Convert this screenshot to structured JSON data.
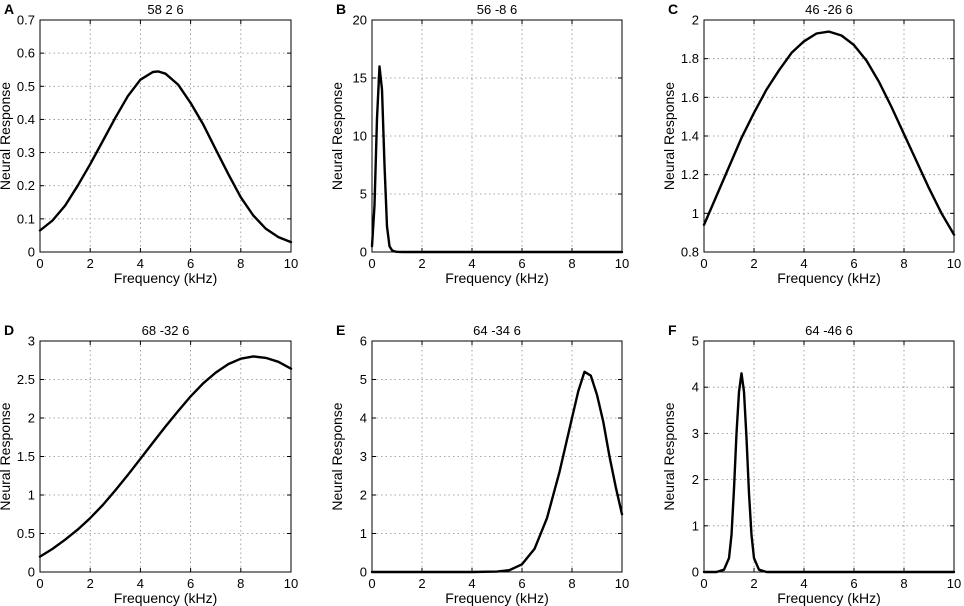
{
  "chart_data": [
    {
      "type": "line",
      "panel": "A",
      "title": "58 2 6",
      "xlabel": "Frequency (kHz)",
      "ylabel": "Neural Response",
      "xlim": [
        0,
        10
      ],
      "ylim": [
        0,
        0.7
      ],
      "grid": true,
      "xticks": [
        "0",
        "2",
        "4",
        "6",
        "8",
        "10"
      ],
      "yticks": [
        "0",
        "0.1",
        "0.2",
        "0.3",
        "0.4",
        "0.5",
        "0.6",
        "0.7"
      ],
      "x": [
        0,
        0.5,
        1,
        1.5,
        2,
        2.5,
        3,
        3.5,
        4,
        4.5,
        4.7,
        5,
        5.5,
        6,
        6.5,
        7,
        7.5,
        8,
        8.5,
        9,
        9.5,
        10
      ],
      "y": [
        0.065,
        0.095,
        0.14,
        0.2,
        0.265,
        0.335,
        0.405,
        0.47,
        0.52,
        0.543,
        0.545,
        0.538,
        0.505,
        0.45,
        0.385,
        0.31,
        0.235,
        0.165,
        0.11,
        0.07,
        0.045,
        0.03
      ],
      "series_name": "Neural Response"
    },
    {
      "type": "line",
      "panel": "B",
      "title": "56 -8 6",
      "xlabel": "Frequency (kHz)",
      "ylabel": "Neural Response",
      "xlim": [
        0,
        10
      ],
      "ylim": [
        0,
        20
      ],
      "grid": true,
      "xticks": [
        "0",
        "2",
        "4",
        "6",
        "8",
        "10"
      ],
      "yticks": [
        "0",
        "5",
        "10",
        "15",
        "20"
      ],
      "x": [
        0,
        0.1,
        0.2,
        0.3,
        0.4,
        0.5,
        0.6,
        0.7,
        0.8,
        0.9,
        1.0,
        1.2,
        2,
        4,
        6,
        8,
        10
      ],
      "y": [
        0.5,
        4,
        11.5,
        16,
        14,
        7.5,
        2.2,
        0.5,
        0.15,
        0.05,
        0.02,
        0,
        0,
        0,
        0,
        0,
        0
      ],
      "series_name": "Neural Response"
    },
    {
      "type": "line",
      "panel": "C",
      "title": "46 -26 6",
      "xlabel": "Frequency (kHz)",
      "ylabel": "Neural Response",
      "xlim": [
        0,
        10
      ],
      "ylim": [
        0.8,
        2
      ],
      "grid": true,
      "xticks": [
        "0",
        "2",
        "4",
        "6",
        "8",
        "10"
      ],
      "yticks": [
        "0.8",
        "1",
        "1.2",
        "1.4",
        "1.6",
        "1.8",
        "2"
      ],
      "x": [
        0,
        0.5,
        1,
        1.5,
        2,
        2.5,
        3,
        3.5,
        4,
        4.5,
        5,
        5.5,
        6,
        6.5,
        7,
        7.5,
        8,
        8.5,
        9,
        9.5,
        10
      ],
      "y": [
        0.94,
        1.09,
        1.24,
        1.39,
        1.52,
        1.64,
        1.74,
        1.83,
        1.89,
        1.93,
        1.94,
        1.92,
        1.87,
        1.79,
        1.68,
        1.55,
        1.41,
        1.27,
        1.13,
        1.0,
        0.89
      ],
      "series_name": "Neural Response"
    },
    {
      "type": "line",
      "panel": "D",
      "title": "68 -32 6",
      "xlabel": "Frequency (kHz)",
      "ylabel": "Neural Response",
      "xlim": [
        0,
        10
      ],
      "ylim": [
        0,
        3
      ],
      "grid": true,
      "xticks": [
        "0",
        "2",
        "4",
        "6",
        "8",
        "10"
      ],
      "yticks": [
        "0",
        "0.5",
        "1",
        "1.5",
        "2",
        "2.5",
        "3"
      ],
      "x": [
        0,
        0.5,
        1,
        1.5,
        2,
        2.5,
        3,
        3.5,
        4,
        4.5,
        5,
        5.5,
        6,
        6.5,
        7,
        7.5,
        8,
        8.5,
        9,
        9.5,
        10
      ],
      "y": [
        0.2,
        0.3,
        0.42,
        0.55,
        0.7,
        0.87,
        1.06,
        1.26,
        1.47,
        1.68,
        1.89,
        2.09,
        2.28,
        2.45,
        2.59,
        2.7,
        2.77,
        2.8,
        2.78,
        2.73,
        2.64
      ],
      "series_name": "Neural Response"
    },
    {
      "type": "line",
      "panel": "E",
      "title": "64 -34 6",
      "xlabel": "Frequency (kHz)",
      "ylabel": "Neural Response",
      "xlim": [
        0,
        10
      ],
      "ylim": [
        0,
        6
      ],
      "grid": true,
      "xticks": [
        "0",
        "2",
        "4",
        "6",
        "8",
        "10"
      ],
      "yticks": [
        "0",
        "1",
        "2",
        "3",
        "4",
        "5",
        "6"
      ],
      "x": [
        0,
        2,
        4,
        5,
        5.5,
        6,
        6.5,
        7,
        7.5,
        8,
        8.25,
        8.5,
        8.75,
        9,
        9.25,
        9.5,
        9.75,
        10
      ],
      "y": [
        0,
        0,
        0,
        0.01,
        0.05,
        0.2,
        0.6,
        1.4,
        2.6,
        4.0,
        4.7,
        5.2,
        5.1,
        4.6,
        3.9,
        3.0,
        2.2,
        1.5
      ],
      "series_name": "Neural Response"
    },
    {
      "type": "line",
      "panel": "F",
      "title": "64 -46 6",
      "xlabel": "Frequency (kHz)",
      "ylabel": "Neural Response",
      "xlim": [
        0,
        10
      ],
      "ylim": [
        0,
        5
      ],
      "grid": true,
      "xticks": [
        "0",
        "2",
        "4",
        "6",
        "8",
        "10"
      ],
      "yticks": [
        "0",
        "1",
        "2",
        "3",
        "4",
        "5"
      ],
      "x": [
        0,
        0.5,
        0.8,
        1.0,
        1.1,
        1.2,
        1.3,
        1.4,
        1.5,
        1.6,
        1.7,
        1.8,
        1.9,
        2.0,
        2.2,
        2.5,
        4,
        6,
        8,
        10
      ],
      "y": [
        0,
        0,
        0.05,
        0.3,
        0.8,
        1.8,
        3.0,
        3.9,
        4.3,
        3.9,
        2.9,
        1.7,
        0.8,
        0.3,
        0.05,
        0,
        0,
        0,
        0,
        0
      ],
      "series_name": "Neural Response"
    }
  ]
}
